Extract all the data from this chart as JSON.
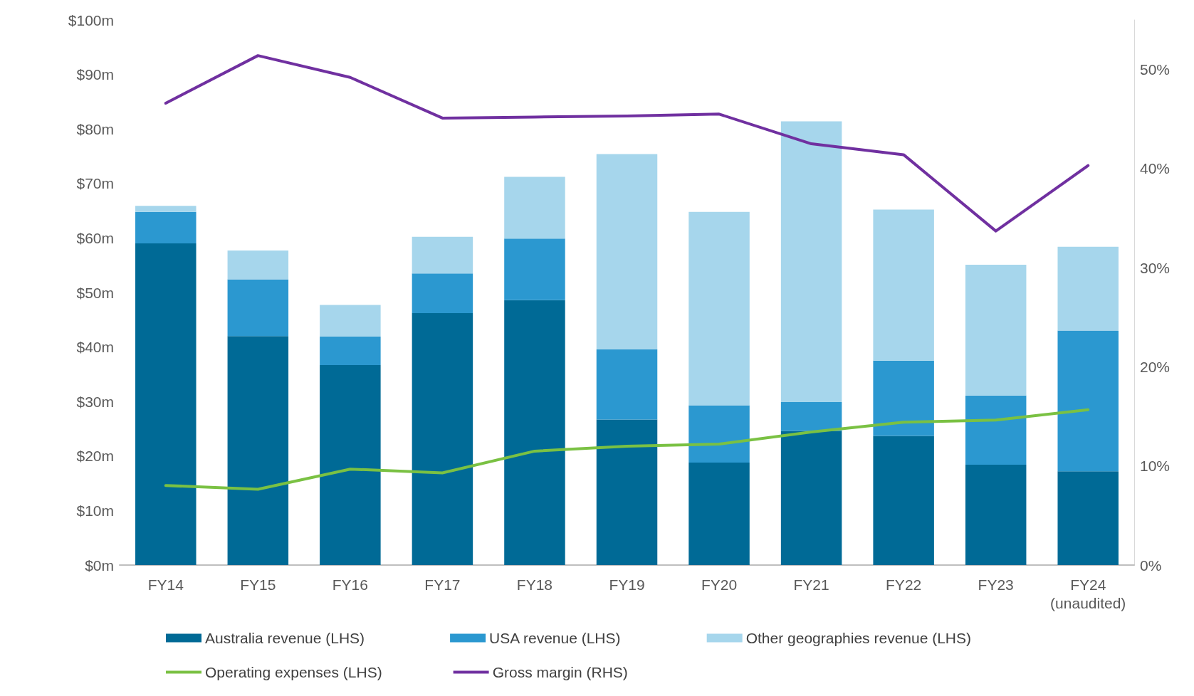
{
  "chart_data": {
    "type": "bar",
    "stacked": true,
    "categories": [
      "FY14",
      "FY15",
      "FY16",
      "FY17",
      "FY18",
      "FY19",
      "FY20",
      "FY21",
      "FY22",
      "FY23",
      "FY24\n(unaudited)"
    ],
    "series": [
      {
        "name": "Australia revenue (LHS)",
        "color": "#006a96",
        "values": [
          59.0,
          42.0,
          36.7,
          46.2,
          48.6,
          26.7,
          18.8,
          24.6,
          23.7,
          18.4,
          17.2
        ]
      },
      {
        "name": "USA revenue (LHS)",
        "color": "#2b98d0",
        "values": [
          5.8,
          10.4,
          5.2,
          7.3,
          11.3,
          12.9,
          10.5,
          5.3,
          13.8,
          12.7,
          25.8
        ]
      },
      {
        "name": "Other geographies revenue (LHS)",
        "color": "#a6d6ec",
        "values": [
          1.1,
          5.3,
          5.8,
          6.7,
          11.3,
          35.8,
          35.5,
          51.5,
          27.7,
          24.0,
          15.4
        ]
      },
      {
        "name": "Operating expenses (LHS)",
        "type": "line",
        "color": "#7ac143",
        "values": [
          14.6,
          13.9,
          17.6,
          16.9,
          20.9,
          21.8,
          22.2,
          24.4,
          26.2,
          26.6,
          28.5
        ]
      },
      {
        "name": "Gross margin (RHS)",
        "type": "line",
        "axis": "y2",
        "color": "#7030a0",
        "values": [
          46.6,
          51.4,
          49.2,
          45.1,
          45.2,
          45.3,
          45.5,
          42.5,
          41.4,
          33.7,
          40.3
        ]
      }
    ],
    "ylim": [
      0,
      100
    ],
    "yticks": [
      {
        "value": 0,
        "label": "$0m"
      },
      {
        "value": 10,
        "label": "$10m"
      },
      {
        "value": 20,
        "label": "$20m"
      },
      {
        "value": 30,
        "label": "$30m"
      },
      {
        "value": 40,
        "label": "$40m"
      },
      {
        "value": 50,
        "label": "$50m"
      },
      {
        "value": 60,
        "label": "$60m"
      },
      {
        "value": 70,
        "label": "$70m"
      },
      {
        "value": 80,
        "label": "$80m"
      },
      {
        "value": 90,
        "label": "$90m"
      },
      {
        "value": 100,
        "label": "$100m"
      }
    ],
    "y2lim": [
      0,
      55
    ],
    "y2ticks": [
      {
        "value": 0,
        "label": "0%"
      },
      {
        "value": 10,
        "label": "10%"
      },
      {
        "value": 20,
        "label": "20%"
      },
      {
        "value": 30,
        "label": "30%"
      },
      {
        "value": 40,
        "label": "40%"
      },
      {
        "value": 50,
        "label": "50%"
      }
    ],
    "grid": false,
    "legend": "bottom",
    "marker": "none",
    "line_style": "solid"
  }
}
